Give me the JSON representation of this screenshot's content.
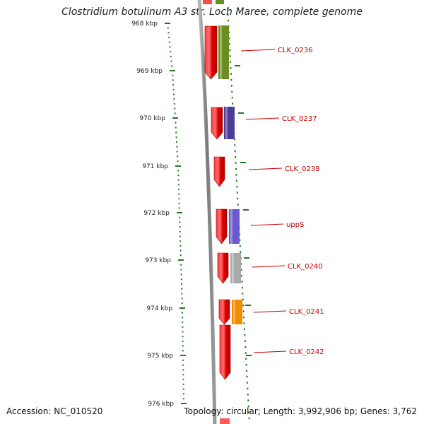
{
  "title": "Clostridium botulinum A3 str. Loch Maree, complete genome",
  "footer": {
    "accession": "Accession: NC_010520",
    "summary": "Topology: circular; Length: 3,992,906 bp; Genes: 3,762"
  },
  "ruler": {
    "unit": "kbp",
    "ticks": [
      {
        "label": "968 kbp"
      },
      {
        "label": "969 kbp"
      },
      {
        "label": "970 kbp"
      },
      {
        "label": "971 kbp"
      },
      {
        "label": "972 kbp"
      },
      {
        "label": "973 kbp"
      },
      {
        "label": "974 kbp"
      },
      {
        "label": "975 kbp"
      },
      {
        "label": "976 kbp"
      }
    ]
  },
  "genes": [
    {
      "name": "CLK_0236",
      "color": "#e61010"
    },
    {
      "name": "CLK_0237",
      "color": "#e61010"
    },
    {
      "name": "CLK_0238",
      "color": "#e61010"
    },
    {
      "name": "uppS",
      "color": "#e61010"
    },
    {
      "name": "CLK_0240",
      "color": "#e61010"
    },
    {
      "name": "CLK_0241",
      "color": "#e61010"
    },
    {
      "name": "CLK_0242",
      "color": "#e61010"
    }
  ],
  "features": [
    {
      "color": "#6b8e23"
    },
    {
      "color": "#4b3c96"
    },
    {
      "color": "#6a5acd"
    },
    {
      "color": "#a9a9a9"
    },
    {
      "color": "#f08c00"
    }
  ],
  "colors": {
    "ruler": "#1f7a1f",
    "label": "#cc0000",
    "backbone": "#8a8a8a"
  }
}
